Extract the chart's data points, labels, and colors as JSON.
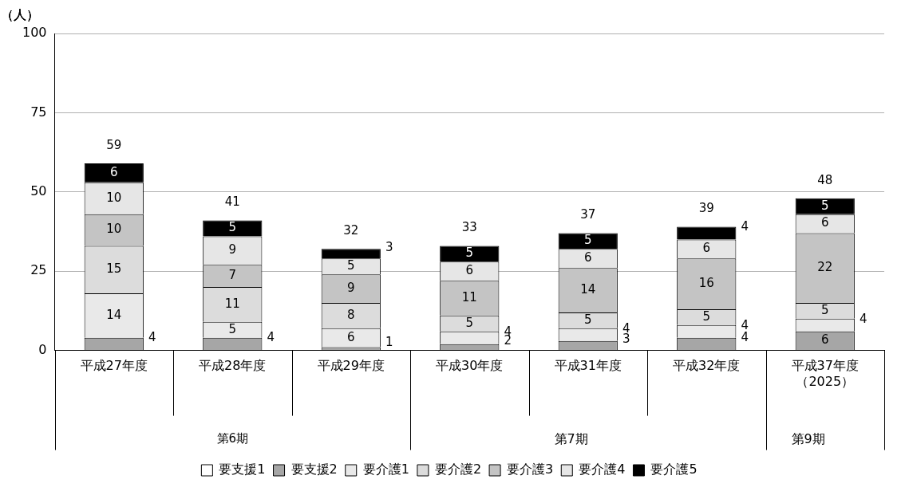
{
  "chart_data": {
    "type": "bar",
    "stacked": true,
    "ylabel": "（人）",
    "ylim": [
      0,
      100
    ],
    "yticks": [
      0,
      25,
      50,
      75,
      100
    ],
    "grid": "y",
    "legend": "bottom",
    "categories": [
      "平成27年度",
      "平成28年度",
      "平成29年度",
      "平成30年度",
      "平成31年度",
      "平成32年度",
      "平成37年度（2025）"
    ],
    "series": [
      {
        "name": "要支援1",
        "color": "#ffffff",
        "values": [
          0,
          0,
          0,
          0,
          0,
          0,
          0
        ],
        "value_labels": [
          null,
          null,
          null,
          null,
          null,
          null,
          null
        ]
      },
      {
        "name": "要支援2",
        "color": "#a6a6a6",
        "values": [
          4,
          4,
          1,
          2,
          3,
          4,
          6
        ],
        "value_labels": [
          "4",
          "4",
          "1",
          "2",
          "3",
          "4",
          "6"
        ]
      },
      {
        "name": "要介護1",
        "color": "#e9e9e9",
        "values": [
          14,
          5,
          6,
          4,
          4,
          4,
          4
        ],
        "value_labels": [
          "14",
          "5",
          "6",
          "4",
          "4",
          "4",
          "4"
        ]
      },
      {
        "name": "要介護2",
        "color": "#dcdcdc",
        "values": [
          15,
          11,
          8,
          5,
          5,
          5,
          5
        ],
        "value_labels": [
          "15",
          "11",
          "8",
          "5",
          "5",
          "5",
          "5"
        ]
      },
      {
        "name": "要介護3",
        "color": "#c4c4c4",
        "values": [
          10,
          7,
          9,
          11,
          14,
          16,
          22
        ],
        "value_labels": [
          "10",
          "7",
          "9",
          "11",
          "14",
          "16",
          "22"
        ]
      },
      {
        "name": "要介護4",
        "color": "#e6e6e6",
        "values": [
          10,
          9,
          5,
          6,
          6,
          6,
          6
        ],
        "value_labels": [
          "10",
          "9",
          "5",
          "6",
          "6",
          "6",
          "6"
        ]
      },
      {
        "name": "要介護5",
        "color": "#000000",
        "values": [
          6,
          5,
          3,
          5,
          5,
          4,
          5
        ],
        "value_labels": [
          "6",
          "5",
          "3",
          "5",
          "5",
          "4",
          "5"
        ]
      }
    ],
    "totals": [
      "59",
      "41",
      "32",
      "33",
      "37",
      "39",
      "48"
    ],
    "annotations": [
      "第6期",
      "第7期",
      "第9期"
    ]
  }
}
